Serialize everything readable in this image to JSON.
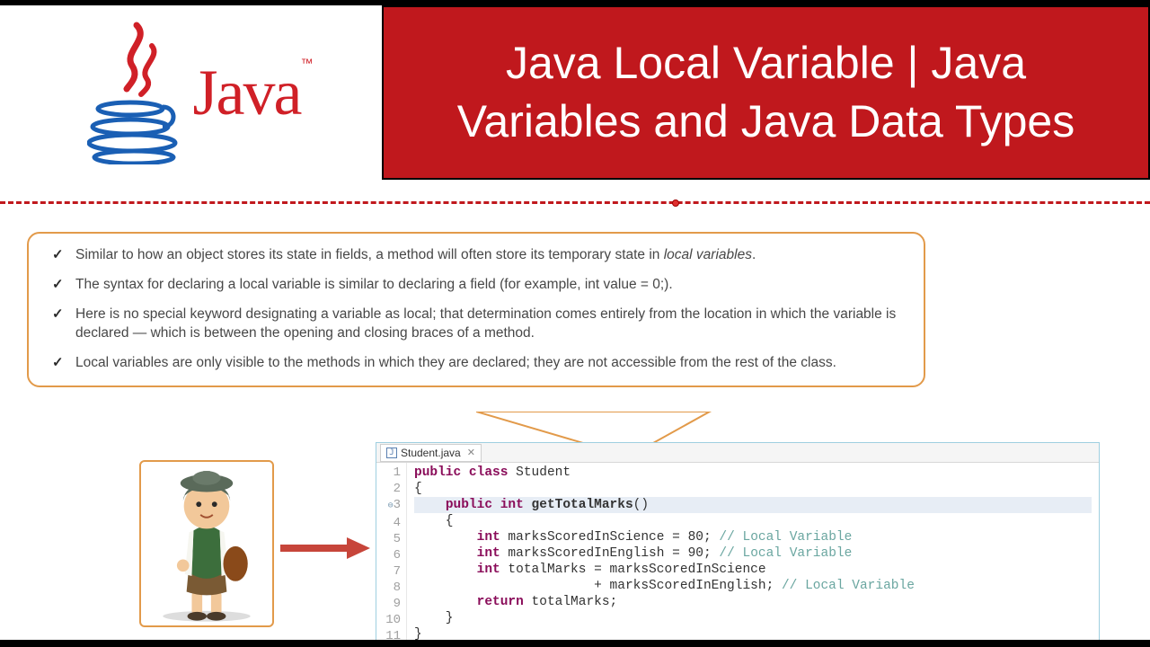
{
  "header": {
    "logo_word": "Java",
    "trademark": "™",
    "title": "Java Local Variable | Java Variables and Java Data Types",
    "title_bg": "#c0181d",
    "title_color": "#ffffff",
    "logo_word_color": "#d02027"
  },
  "divider": {
    "color": "#c0181d",
    "style": "dashed",
    "dot_color": "#e03030"
  },
  "callout": {
    "border_color": "#e29a4a",
    "text_color": "#474747",
    "fontsize": 15.5,
    "points": [
      "Similar to how an object stores its state in fields, a method will often store its temporary state in local variables.",
      "The syntax for declaring a local variable is similar to declaring a field (for example, int value = 0;).",
      "Here is no special keyword designating a variable as local; that determination comes entirely from the location in which the variable is declared — which is between the opening and closing braces of a method.",
      "Local variables are only visible to the methods in which they are declared; they are not accessible from the rest of the class."
    ],
    "italic_phrase": "local variables"
  },
  "illustration": {
    "label": "student-character",
    "border_color": "#e29a4a"
  },
  "arrow": {
    "color": "#c7453a"
  },
  "code": {
    "tab_label": "Student.java",
    "tab_close_glyph": "✕",
    "border_color": "#9fcfe0",
    "gutter_color": "#a0a0a0",
    "fontsize": 14.5,
    "highlight_bg": "#e7edf5",
    "colors": {
      "keyword": "#8a0d5a",
      "comment": "#6aa6a0",
      "default": "#333333"
    },
    "lines": [
      {
        "n": 1,
        "html": "<span class='kw'>public</span> <span class='kw'>class</span> <span class='cls'>Student</span>"
      },
      {
        "n": 2,
        "html": "{"
      },
      {
        "n": 3,
        "hl": true,
        "fold": "⊖",
        "html": "    <span class='kw'>public</span> <span class='kw'>int</span> <span class='mth'>getTotalMarks</span>()"
      },
      {
        "n": 4,
        "html": "    {"
      },
      {
        "n": 5,
        "html": "        <span class='kw'>int</span> marksScoredInScience = <span class='num'>80</span>; <span class='cmt'>// Local Variable</span>"
      },
      {
        "n": 6,
        "html": "        <span class='kw'>int</span> marksScoredInEnglish = <span class='num'>90</span>; <span class='cmt'>// Local Variable</span>"
      },
      {
        "n": 7,
        "html": "        <span class='kw'>int</span> totalMarks = marksScoredInScience"
      },
      {
        "n": 8,
        "html": "                       + marksScoredInEnglish; <span class='cmt'>// Local Variable</span>"
      },
      {
        "n": 9,
        "html": "        <span class='kwr'>return</span> totalMarks;"
      },
      {
        "n": 10,
        "html": "    }"
      },
      {
        "n": 11,
        "html": "}"
      }
    ]
  }
}
